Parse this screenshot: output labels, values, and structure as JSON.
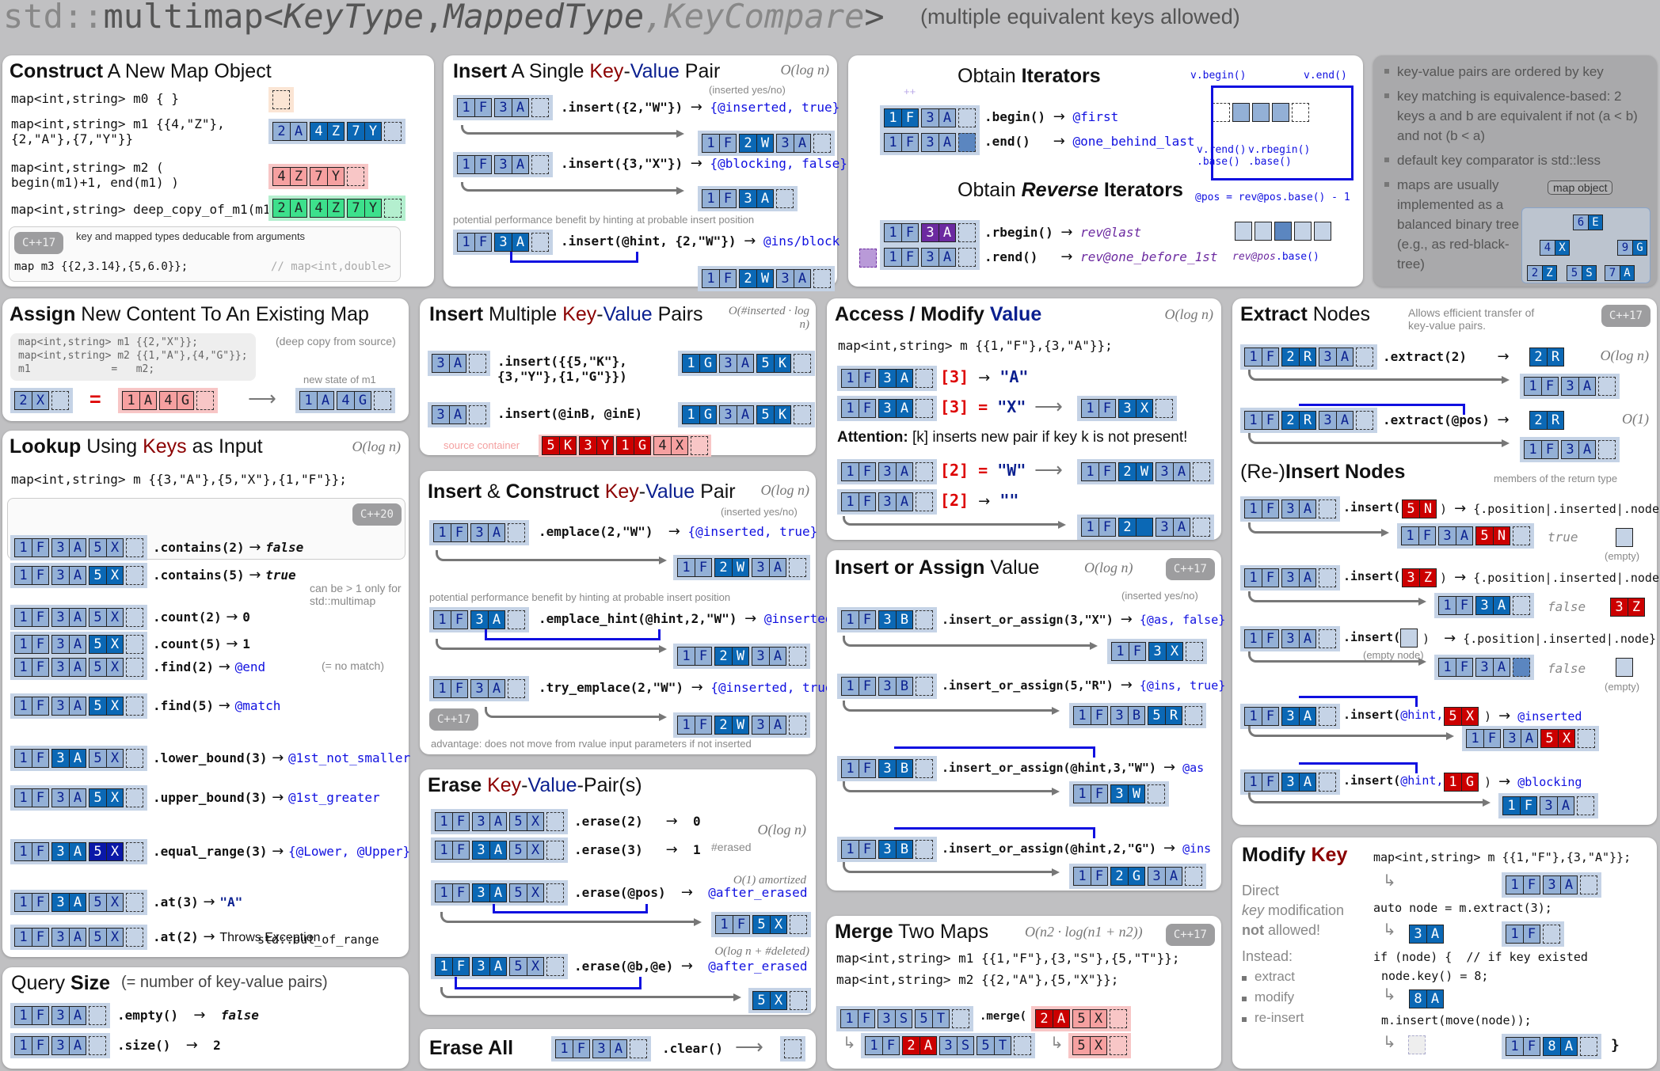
{
  "header": {
    "prefix": "std::",
    "name": "multimap",
    "open": "<",
    "key_type": "KeyType",
    "comma1": ",",
    "mapped_type": "MappedType",
    "comma2": ",",
    "key_compare": "KeyCompare",
    "close": ">",
    "note": "(multiple equivalent keys allowed)"
  },
  "construct": {
    "title_bold": "Construct",
    "title_rest": " A New Map Object",
    "lines": [
      "map<int,string> m0 { }",
      "map<int,string> m1 {{4,\"Z\"}, {2,\"A\"},{7,\"Y\"}}",
      "map<int,string> m2 ( begin(m1)+1, end(m1) )",
      "map<int,string> deep_copy_of_m1(m1)"
    ],
    "cpp17_badge": "C++17",
    "cpp17_note": "key and mapped types deducable from arguments",
    "cpp17_code": "map      m3 {{2,3.14},{5,6.0}};",
    "cpp17_comment": "// map<int,double>"
  },
  "insert_single": {
    "title_bold": "Insert",
    "title_mid": " A Single ",
    "title_key": "Key",
    "title_dash": "-",
    "title_value": "Value",
    "title_end": " Pair",
    "complexity": "O(log n)",
    "inserted_note": "(inserted yes/no)",
    "calls": [
      {
        "call": ".insert({2,\"W\"})",
        "result": "{@inserted, true}"
      },
      {
        "call": ".insert({3,\"X\"})",
        "result": "{@blocking, false}"
      },
      {
        "call": ".insert(@hint, {2,\"W\"})",
        "result": "@ins/block"
      }
    ],
    "hint_note": "potential performance benefit by hinting at probable insert position"
  },
  "iterators": {
    "title": "Obtain ",
    "title_bold": "Iterators",
    "rev_title": "Obtain ",
    "rev_title_it": "Reverse",
    "rev_title_end": " Iterators",
    "calls": [
      {
        "call": ".begin()",
        "result": "@first"
      },
      {
        "call": ".end()",
        "result": "@one_behind_last"
      },
      {
        "call": ".rbegin()",
        "result": "rev@last"
      },
      {
        "call": ".rend()",
        "result": "rev@one_before_1st"
      }
    ],
    "increment": "++",
    "diagram": {
      "v_begin": "v.begin()",
      "v_end": "v.end()",
      "v_rend_base": "v.rend()\n.base()",
      "v_rbegin_base": "v.rbegin()\n.base()",
      "pos_formula": "@pos = rev@pos.base() - 1",
      "rev_pos": "rev@pos",
      "base": ".base()"
    }
  },
  "facts": {
    "items": [
      "key-value pairs are ordered by key",
      "key matching is equivalence-based: 2 keys a and b are equivalent if not (a < b) and not (b < a)",
      "default key comparator is std::less",
      "maps are usually implemented as a balanced binary tree (e.g., as red-black-tree)"
    ],
    "tree_label": "map object",
    "tree_nodes": [
      {
        "k": "6",
        "v": "E"
      },
      {
        "k": "4",
        "v": "X"
      },
      {
        "k": "9",
        "v": "G"
      },
      {
        "k": "2",
        "v": "Z"
      },
      {
        "k": "5",
        "v": "S"
      },
      {
        "k": "7",
        "v": "A"
      }
    ]
  },
  "assign": {
    "title_bold": "Assign",
    "title_rest": " New Content To An Existing Map",
    "code": [
      "map<int,string> m1 {{2,\"X\"}};",
      "map<int,string> m2 {{1,\"A\"},{4,\"G\"}};",
      "m1             =   m2;"
    ],
    "deep_copy_note": "(deep copy from source)",
    "new_state_note": "new state of m1",
    "eq": "="
  },
  "lookup": {
    "title_bold": "Lookup",
    "title_mid": " Using ",
    "title_key": "Keys",
    "title_end": " as Input",
    "complexity": "O(log n)",
    "decl": "map<int,string> m {{3,\"A\"},{5,\"X\"},{1,\"F\"}};",
    "cpp20_badge": "C++20",
    "calls": [
      {
        "call": ".contains(2)",
        "result": "false"
      },
      {
        "call": ".contains(5)",
        "result": "true"
      },
      {
        "call": ".count(2)",
        "result": "0"
      },
      {
        "call": ".count(5)",
        "result": "1"
      },
      {
        "call": ".find(2)",
        "result": "@end"
      },
      {
        "call": ".find(5)",
        "result": "@match"
      },
      {
        "call": ".lower_bound(3)",
        "result": "@1st_not_smaller"
      },
      {
        "call": ".upper_bound(3)",
        "result": "@1st_greater"
      },
      {
        "call": ".equal_range(3)",
        "result": "{@Lower, @Upper}"
      },
      {
        "call": ".at(3)",
        "result": "\"A\""
      },
      {
        "call": ".at(2)",
        "result": "Throws Exception"
      }
    ],
    "count_note": "can be > 1 only for std::multimap",
    "no_match_note": "(= no match)",
    "exception_type": "std::out_of_range"
  },
  "query_size": {
    "title_mid": "Query ",
    "title_bold": "Size",
    "note": "(= number of key-value pairs)",
    "calls": [
      {
        "call": ".empty()",
        "result": "false"
      },
      {
        "call": ".size()",
        "result": "2"
      }
    ]
  },
  "insert_multi": {
    "title_bold": "Insert",
    "title_mid": " Multiple ",
    "title_key": "Key",
    "title_value": "Value",
    "title_end": " Pairs",
    "complexity": "O(#inserted · log n)",
    "calls": [
      {
        "call": ".insert({{5,\"K\"}, {3,\"Y\"},{1,\"G\"}})"
      },
      {
        "call": ".insert(@inB, @inE)"
      }
    ],
    "source_note": "source container"
  },
  "emplace": {
    "title_bold": "Insert",
    "title_amp": " & ",
    "title_bold2": "Construct",
    "title_key": "Key",
    "title_value": "Value",
    "title_end": " Pair",
    "complexity": "O(log n)",
    "inserted_note": "(inserted yes/no)",
    "calls": [
      {
        "call": ".emplace(2,\"W\")",
        "result": "{@inserted, true}"
      },
      {
        "call": ".emplace_hint(@hint,2,\"W\")",
        "result": "@inserted"
      },
      {
        "call": ".try_emplace(2,\"W\")",
        "result": "{@inserted, true}"
      }
    ],
    "hint_note": "potential performance benefit by hinting at probable insert position",
    "cpp17_badge": "C++17",
    "advantage_note": "advantage: does not move from rvalue input parameters if not inserted"
  },
  "erase": {
    "title_bold": "Erase",
    "title_key": "Key",
    "title_value": "Value",
    "title_end": "-Pair(s)",
    "complexity": "O(log n)",
    "erased_note": "#erased",
    "calls": [
      {
        "call": ".erase(2)",
        "result": "0"
      },
      {
        "call": ".erase(3)",
        "result": "1"
      },
      {
        "call": ".erase(@pos)",
        "result": "@after_erased",
        "complexity": "O(1) amortized"
      },
      {
        "call": ".erase(@b,@e)",
        "result": "@after_erased",
        "complexity": "O(log n + #deleted)"
      }
    ]
  },
  "erase_all": {
    "title": "Erase All",
    "call": ".clear()"
  },
  "access": {
    "title_bold": "Access / Modify ",
    "title_value": "Value",
    "complexity": "O(log n)",
    "decl": "map<int,string> m {{1,\"F\"},{3,\"A\"}};",
    "calls": [
      {
        "call": "[3]",
        "op": "→",
        "result": "\"A\""
      },
      {
        "call": "[3]",
        "op": "=",
        "result": "\"X\""
      },
      {
        "call": "[2]",
        "op": "=",
        "result": "\"W\""
      },
      {
        "call": "[2]",
        "op": "→",
        "result": "\"\""
      }
    ],
    "attention_bold": "Attention:",
    "attention_text": " [k] inserts new pair if key k is not present!"
  },
  "insert_or_assign": {
    "title_bold": "Insert or Assign",
    "title_rest": " Value",
    "complexity": "O(log n)",
    "cpp17_badge": "C++17",
    "inserted_note": "(inserted yes/no)",
    "calls": [
      {
        "call": ".insert_or_assign(3,\"X\")",
        "result": "{@as, false}"
      },
      {
        "call": ".insert_or_assign(5,\"R\")",
        "result": "{@ins, true}"
      },
      {
        "call": ".insert_or_assign(@hint,3,\"W\")",
        "result": "@as"
      },
      {
        "call": ".insert_or_assign(@hint,2,\"G\")",
        "result": "@ins"
      }
    ]
  },
  "merge": {
    "title_bold": "Merge",
    "title_rest": " Two Maps",
    "complexity": "O(n2 · log(n1 + n2))",
    "cpp17_badge": "C++17",
    "decl1": "map<int,string> m1 {{1,\"F\"},{3,\"S\"},{5,\"T\"}};",
    "decl2": "map<int,string> m2 {{2,\"A\"},{5,\"X\"}};",
    "call": ".merge("
  },
  "extract": {
    "title_bold": "Extract",
    "title_rest": " Nodes",
    "note": "Allows efficient transfer of key-value pairs.",
    "cpp17_badge": "C++17",
    "calls": [
      {
        "call": ".extract(2)",
        "complexity": "O(log n)"
      },
      {
        "call": ".extract(@pos)",
        "complexity": "O(1)"
      }
    ]
  },
  "reinsert": {
    "title_pre": "(Re-)",
    "title_bold": "Insert Nodes",
    "members_note": "members of the return type",
    "return_type": "{.position|.inserted|.node}",
    "calls": [
      {
        "call": ".insert(5 N)",
        "inserted": "true",
        "node": "(empty)"
      },
      {
        "call": ".insert(3 Z)",
        "inserted": "false",
        "node": "3 Z"
      },
      {
        "call": ".insert( )",
        "inserted": "false",
        "node": "(empty)"
      },
      {
        "call": ".insert(@hint, 5 X)",
        "result": "@inserted"
      },
      {
        "call": ".insert(@hint, 1 G)",
        "result": "@blocking"
      }
    ],
    "empty_node_note": "(empty node)"
  },
  "modify_key": {
    "title_bold": "Modify ",
    "title_key": "Key",
    "explain1": "Direct",
    "explain2": "key modification",
    "explain3_bold": "not",
    "explain3": " allowed!",
    "instead": "Instead:",
    "steps": [
      "extract",
      "modify",
      "re-insert"
    ],
    "code": [
      "map<int,string> m {{1,\"F\"},{3,\"A\"}};",
      "auto node = m.extract(3);",
      "if (node) {  // if key existed",
      "node.key() = 8;",
      "m.insert(move(node));",
      "}"
    ]
  }
}
